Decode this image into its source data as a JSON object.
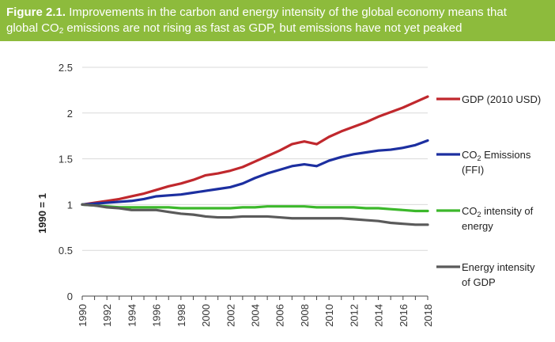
{
  "figure": {
    "label": "Figure 2.1.",
    "title_line1": "Improvements in the carbon and energy intensity of the global economy means that",
    "title_line2_pre": "global CO",
    "title_line2_sub": "2",
    "title_line2_post": " emissions are not rising as fast as GDP, but emissions have not yet peaked",
    "background_color": "#8dbb3c"
  },
  "chart_data": {
    "type": "line",
    "ylabel": "1990 = 1",
    "ylim": [
      0,
      2.5
    ],
    "yticks": [
      "0",
      "0.5",
      "1",
      "1.5",
      "2",
      "2.5"
    ],
    "xticks": [
      "1990",
      "1992",
      "1994",
      "1996",
      "1998",
      "2000",
      "2002",
      "2004",
      "2006",
      "2008",
      "2010",
      "2012",
      "2014",
      "2016",
      "2018"
    ],
    "grid": "horizontal",
    "legend_placement": "right, at line ends",
    "x": [
      1990,
      1991,
      1992,
      1993,
      1994,
      1995,
      1996,
      1997,
      1998,
      1999,
      2000,
      2001,
      2002,
      2003,
      2004,
      2005,
      2006,
      2007,
      2008,
      2009,
      2010,
      2011,
      2012,
      2013,
      2014,
      2015,
      2016,
      2017,
      2018
    ],
    "series": [
      {
        "name": "GDP (2010 USD)",
        "legend_lines": [
          {
            "pre": "GDP (2010 USD)",
            "sub": "",
            "post": ""
          }
        ],
        "color": "#c0282d",
        "values": [
          1.0,
          1.02,
          1.04,
          1.06,
          1.09,
          1.12,
          1.16,
          1.2,
          1.23,
          1.27,
          1.32,
          1.34,
          1.37,
          1.41,
          1.47,
          1.53,
          1.59,
          1.66,
          1.69,
          1.66,
          1.74,
          1.8,
          1.85,
          1.9,
          1.96,
          2.01,
          2.06,
          2.12,
          2.18
        ]
      },
      {
        "name": "CO2 Emissions (FFI)",
        "legend_lines": [
          {
            "pre": "CO",
            "sub": "2",
            "post": " Emissions"
          },
          {
            "pre": "(FFI)",
            "sub": "",
            "post": ""
          }
        ],
        "color": "#1c2fa0",
        "values": [
          1.0,
          1.01,
          1.02,
          1.03,
          1.04,
          1.06,
          1.09,
          1.1,
          1.11,
          1.13,
          1.15,
          1.17,
          1.19,
          1.23,
          1.29,
          1.34,
          1.38,
          1.42,
          1.44,
          1.42,
          1.48,
          1.52,
          1.55,
          1.57,
          1.59,
          1.6,
          1.62,
          1.65,
          1.7
        ]
      },
      {
        "name": "CO2 intensity of energy",
        "legend_lines": [
          {
            "pre": "CO",
            "sub": "2",
            "post": " intensity of"
          },
          {
            "pre": "energy",
            "sub": "",
            "post": ""
          }
        ],
        "color": "#3cb82b",
        "values": [
          1.0,
          0.99,
          0.98,
          0.97,
          0.97,
          0.97,
          0.97,
          0.97,
          0.96,
          0.96,
          0.96,
          0.96,
          0.96,
          0.97,
          0.97,
          0.98,
          0.98,
          0.98,
          0.98,
          0.97,
          0.97,
          0.97,
          0.97,
          0.96,
          0.96,
          0.95,
          0.94,
          0.93,
          0.93
        ]
      },
      {
        "name": "Energy intensity of GDP",
        "legend_lines": [
          {
            "pre": "Energy intensity",
            "sub": "",
            "post": ""
          },
          {
            "pre": "of GDP",
            "sub": "",
            "post": ""
          }
        ],
        "color": "#5a5a5a",
        "values": [
          1.0,
          0.99,
          0.97,
          0.96,
          0.94,
          0.94,
          0.94,
          0.92,
          0.9,
          0.89,
          0.87,
          0.86,
          0.86,
          0.87,
          0.87,
          0.87,
          0.86,
          0.85,
          0.85,
          0.85,
          0.85,
          0.85,
          0.84,
          0.83,
          0.82,
          0.8,
          0.79,
          0.78,
          0.78
        ]
      }
    ]
  }
}
